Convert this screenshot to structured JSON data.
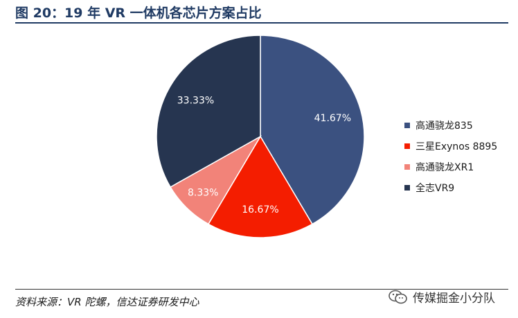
{
  "header": {
    "title": "图 20：19 年 VR 一体机各芯片方案占比"
  },
  "footer": {
    "source": "资料来源：VR 陀螺，信达证券研发中心",
    "watermark": "传媒掘金小分队",
    "watermark_icon": "wechat-icon"
  },
  "chart_data": {
    "type": "pie",
    "title": "",
    "categories": [
      "高通骁龙835",
      "三星Exynos 8895",
      "高通骁龙XR1",
      "全志VR9"
    ],
    "values": [
      41.67,
      16.67,
      8.33,
      33.33
    ],
    "labels": [
      "41.67%",
      "16.67%",
      "8.33%",
      "33.33%"
    ],
    "colors": [
      "#3b5180",
      "#f41d00",
      "#f28379",
      "#263550"
    ],
    "start": "12 o'clock",
    "direction": "clockwise",
    "legend_position": "right"
  }
}
